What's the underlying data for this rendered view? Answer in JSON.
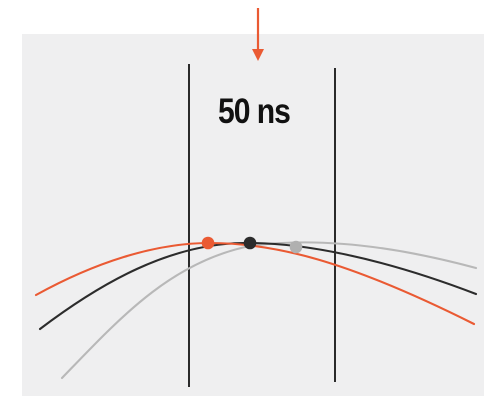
{
  "diagram": {
    "window_label": "50 ns",
    "colors": {
      "background": "#ffffff",
      "panel": "#efeff0",
      "arrow": "#ea5a33",
      "curve_orange": "#ea5a33",
      "curve_black": "#2c2c2c",
      "curve_gray": "#b8b8b8",
      "window_lines": "#151515"
    },
    "markers": [
      {
        "name": "orange-peak",
        "color": "#ea5a33"
      },
      {
        "name": "black-peak",
        "color": "#2c2c2c"
      },
      {
        "name": "gray-peak",
        "color": "#b0b0b0"
      }
    ]
  }
}
